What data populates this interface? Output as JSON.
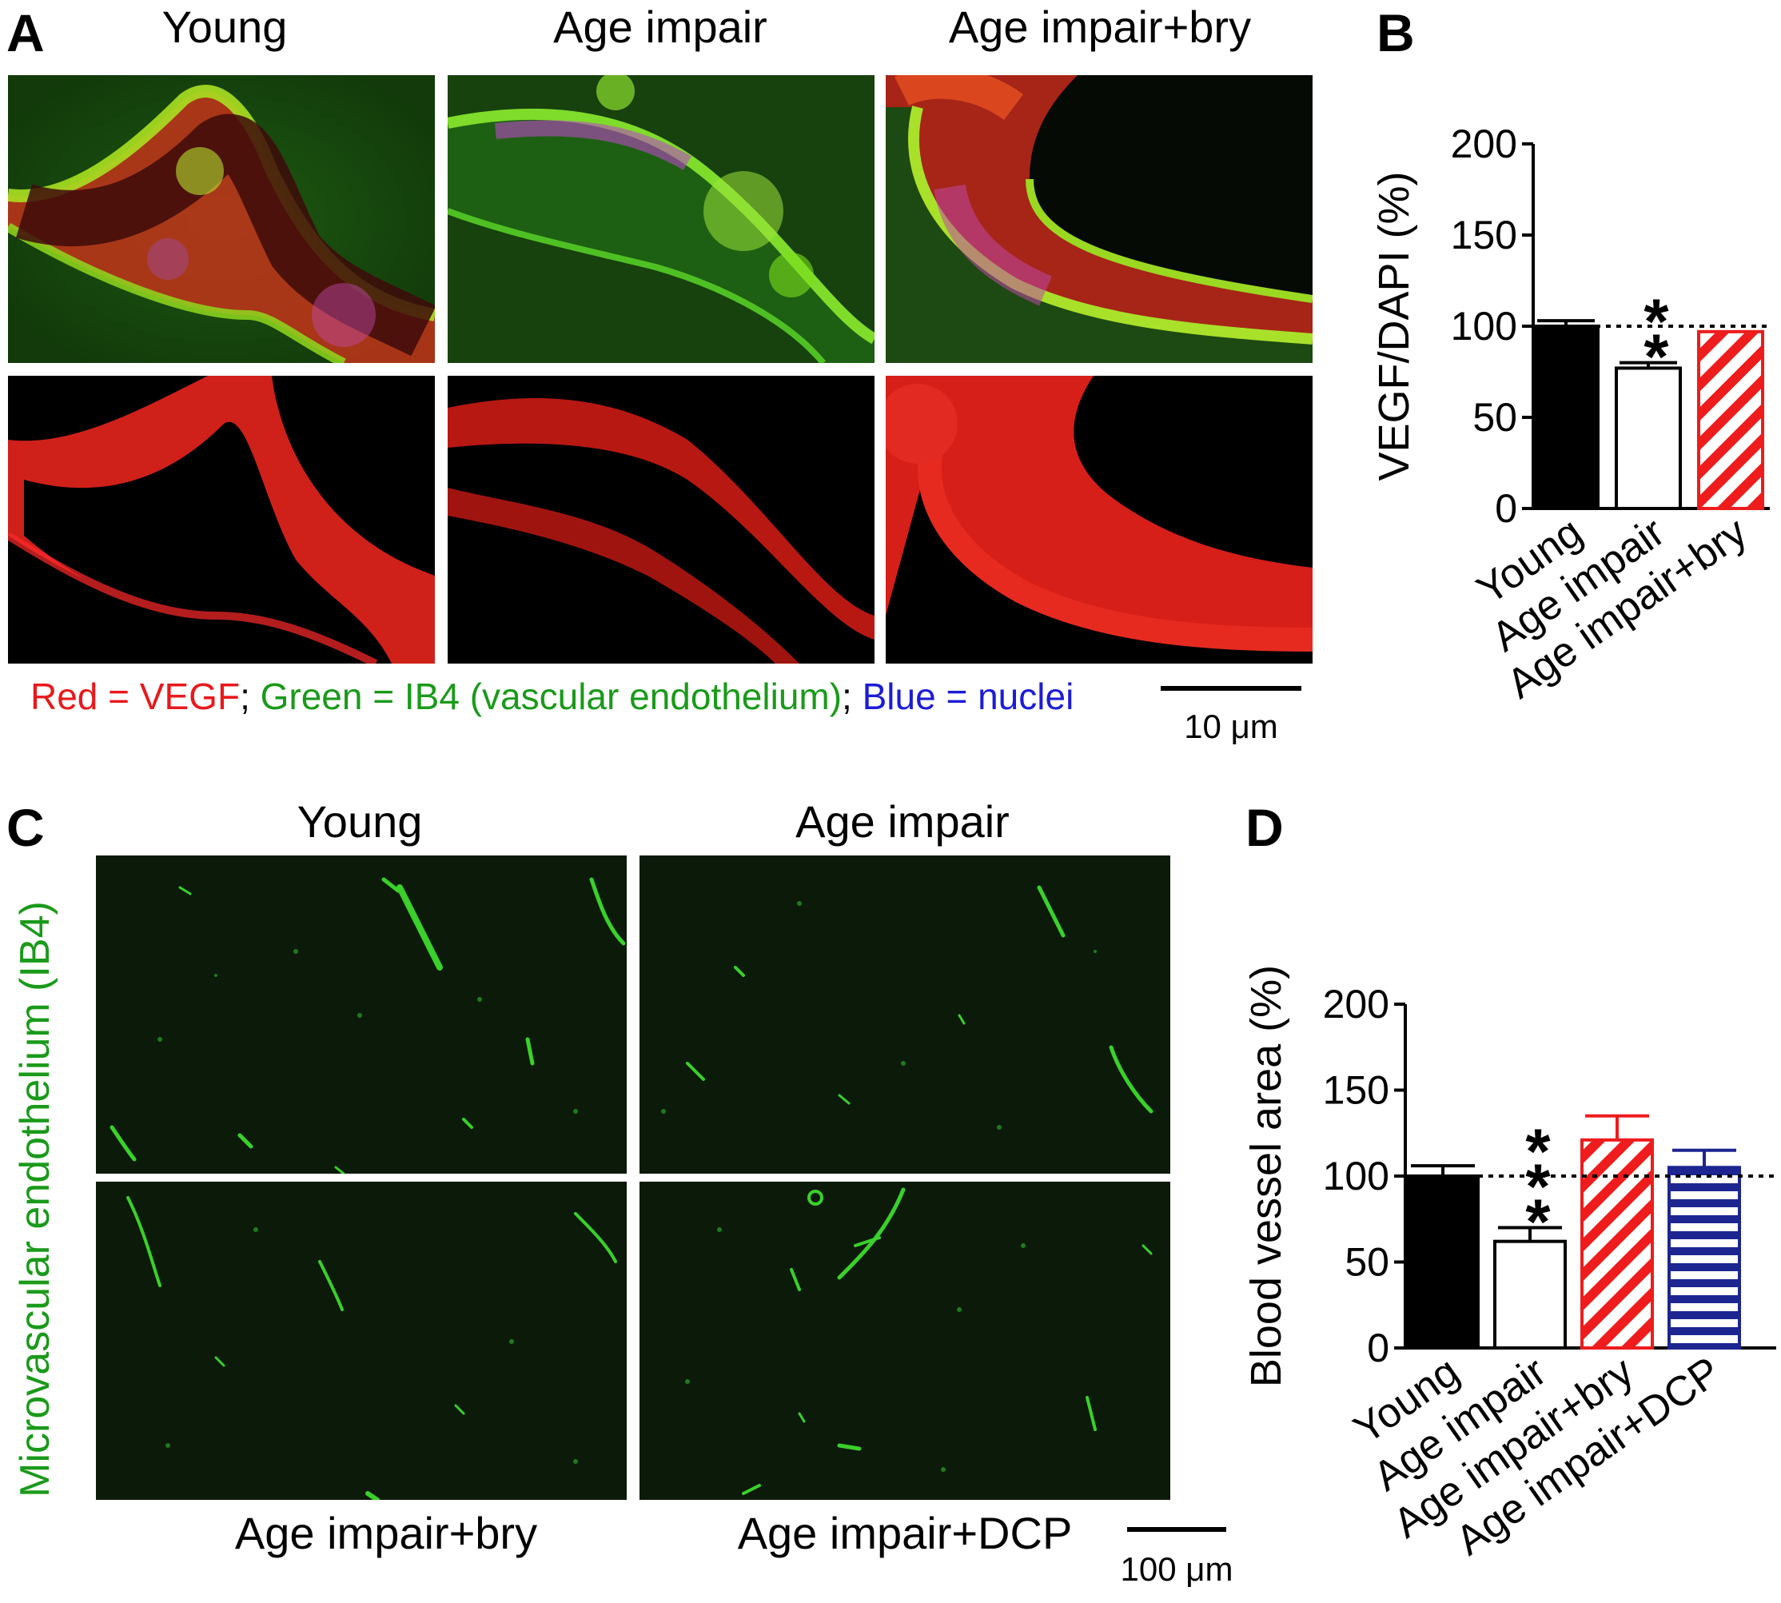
{
  "panelA": {
    "letter": "A",
    "columns": [
      "Young",
      "Age impair",
      "Age impair+bry"
    ],
    "legend": [
      {
        "text": "Red = VEGF",
        "color": "#e8191b"
      },
      {
        "text": "; ",
        "color": "#000000"
      },
      {
        "text": "Green = IB4 (vascular endothelium)",
        "color": "#1a9a1a"
      },
      {
        "text": "; ",
        "color": "#000000"
      },
      {
        "text": "Blue = nuclei",
        "color": "#1c1cd6"
      }
    ],
    "scale_label": "10 μm"
  },
  "panelB": {
    "letter": "B",
    "chart_data": {
      "type": "bar",
      "ylabel": "VEGF/DAPI (%)",
      "ylim": [
        0,
        200
      ],
      "yticks": [
        0,
        50,
        100,
        150,
        200
      ],
      "categories": [
        "Young",
        "Age impair",
        "Age impair+bry"
      ],
      "values": [
        100,
        77,
        97
      ],
      "errors": [
        3,
        3,
        0
      ],
      "fills": [
        "solid-black",
        "white",
        "red-diagonal"
      ],
      "reference_line": 100,
      "significance": [
        "",
        "**",
        ""
      ]
    }
  },
  "panelC": {
    "letter": "C",
    "top_titles": [
      "Young",
      "Age impair"
    ],
    "bottom_titles": [
      "Age impair+bry",
      "Age impair+DCP"
    ],
    "side_label": "Microvascular endothelium (IB4)",
    "side_label_color": "#1a9a1a",
    "scale_label": "100 μm"
  },
  "panelD": {
    "letter": "D",
    "chart_data": {
      "type": "bar",
      "ylabel": "Blood vessel area (%)",
      "ylim": [
        0,
        200
      ],
      "yticks": [
        0,
        50,
        100,
        150,
        200
      ],
      "categories": [
        "Young",
        "Age impair",
        "Age impair+bry",
        "Age impair+DCP"
      ],
      "values": [
        100,
        62,
        121,
        105
      ],
      "errors": [
        6,
        8,
        14,
        10
      ],
      "fills": [
        "solid-black",
        "white",
        "red-diagonal",
        "blue-horizontal"
      ],
      "reference_line": 100,
      "significance": [
        "",
        "***",
        "",
        ""
      ]
    }
  }
}
